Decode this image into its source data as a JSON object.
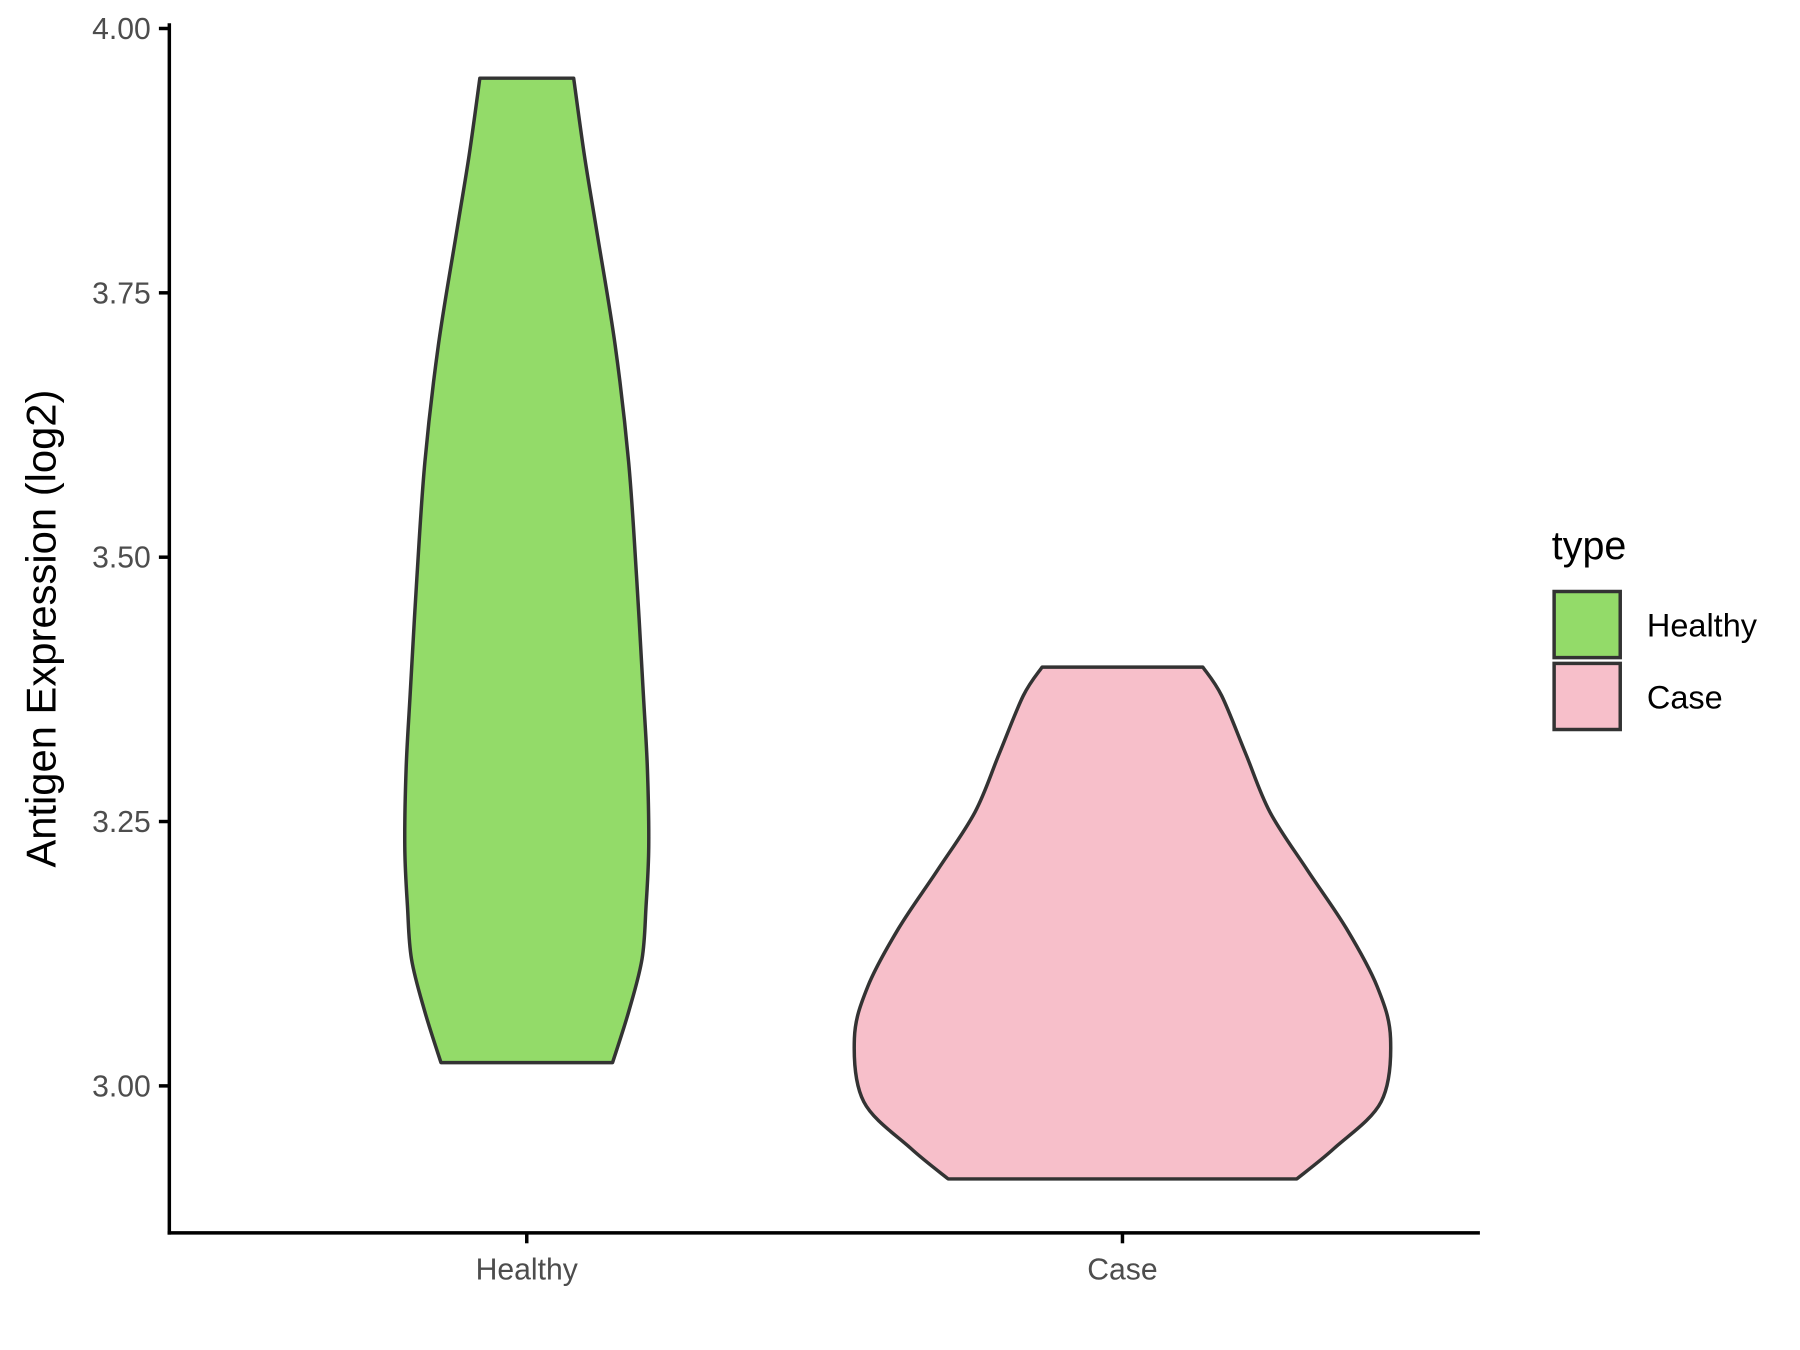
{
  "chart_data": {
    "type": "violin",
    "y_label": "Antigen Expression (log2)",
    "categories": [
      "Healthy",
      "Case"
    ],
    "ylim": [
      2.861,
      4.005
    ],
    "yticks": [
      {
        "value": 3,
        "label": "3.00"
      },
      {
        "value": 3.25,
        "label": "3.25"
      },
      {
        "value": 3.5,
        "label": "3.50"
      },
      {
        "value": 3.75,
        "label": "3.75"
      },
      {
        "value": 4,
        "label": "4.00"
      }
    ],
    "legend_title": "type",
    "legend_position": "right",
    "outline_color": "#333333",
    "series": [
      {
        "name": "Healthy",
        "color": "#93DB69",
        "y": [
          3.022,
          3.07,
          3.12,
          3.17,
          3.226,
          3.3,
          3.37,
          3.48,
          3.59,
          3.7,
          3.81,
          3.88,
          3.953
        ],
        "density": [
          0.32,
          0.38,
          0.43,
          0.445,
          0.455,
          0.45,
          0.435,
          0.41,
          0.38,
          0.33,
          0.26,
          0.215,
          0.175
        ]
      },
      {
        "name": "Case",
        "color": "#F7BFCA",
        "y": [
          2.912,
          2.941,
          2.985,
          3.045,
          3.094,
          3.149,
          3.204,
          3.259,
          3.314,
          3.369,
          3.396
        ],
        "density": [
          0.65,
          0.79,
          0.965,
          1.0,
          0.95,
          0.835,
          0.69,
          0.55,
          0.46,
          0.37,
          0.3
        ]
      }
    ]
  }
}
